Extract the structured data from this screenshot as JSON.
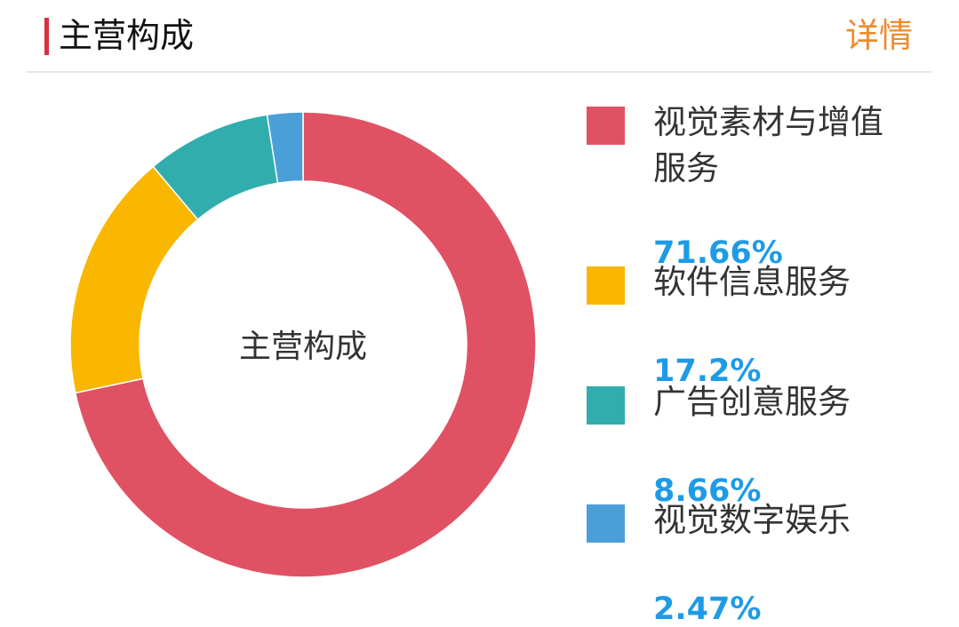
{
  "header": {
    "title": "主营构成",
    "detail_link": "详情"
  },
  "chart_data": {
    "type": "pie",
    "variant": "donut",
    "center_label": "主营构成",
    "start_angle": "12 o'clock, clockwise",
    "legend_position": "right",
    "slices": [
      {
        "name": "视觉素材与增值服务",
        "value": 71.66,
        "label": "71.66%",
        "color": "#e05263"
      },
      {
        "name": "软件信息服务",
        "value": 17.2,
        "label": "17.2%",
        "color": "#f9b700"
      },
      {
        "name": "广告创意服务",
        "value": 8.66,
        "label": "8.66%",
        "color": "#32adae"
      },
      {
        "name": "视觉数字娱乐",
        "value": 2.47,
        "label": "2.47%",
        "color": "#4a9fd8"
      }
    ]
  }
}
